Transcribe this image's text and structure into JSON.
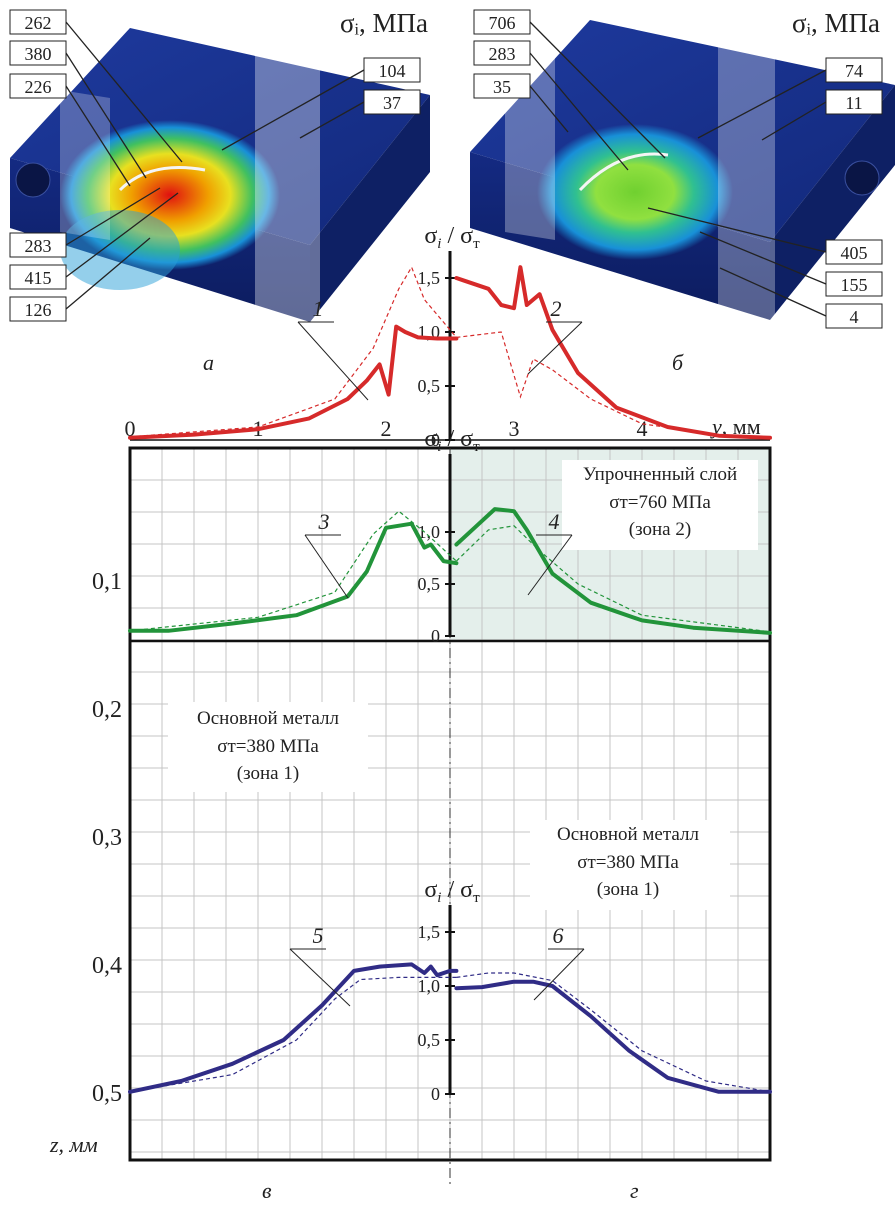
{
  "colors": {
    "red": "#d62a2a",
    "green": "#22943a",
    "blue": "#302c86",
    "grid": "#c4c4c4",
    "shade": "#e4efeb"
  },
  "model_a": {
    "unit_label": "σᵢ, МПа",
    "caption": "а",
    "callouts": [
      "262",
      "380",
      "226",
      "104",
      "37",
      "283",
      "415",
      "126"
    ]
  },
  "model_b": {
    "unit_label": "σᵢ, МПа",
    "caption": "б",
    "callouts": [
      "706",
      "283",
      "35",
      "74",
      "11",
      "405",
      "155",
      "4"
    ]
  },
  "chart_data": [
    {
      "type": "line",
      "title": "",
      "ylabel": "σᵢ / σт",
      "xlabel": "y, мм",
      "xlim": [
        0,
        5
      ],
      "ylim": [
        0,
        1.8
      ],
      "x_ticks": [
        "0",
        "1",
        "2",
        "3",
        "4"
      ],
      "y_ticks": [
        "0",
        "0,5",
        "1,0",
        "1,5"
      ],
      "series": [
        {
          "name": "1",
          "x": [
            0,
            0.5,
            1,
            1.4,
            1.7,
            1.85,
            1.95,
            2.02,
            2.08,
            2.15,
            2.25,
            2.4,
            2.55
          ],
          "y": [
            0.02,
            0.05,
            0.1,
            0.2,
            0.38,
            0.55,
            0.7,
            0.42,
            1.05,
            1.0,
            0.95,
            0.94,
            0.94
          ]
        },
        {
          "name": "2",
          "x": [
            2.55,
            2.6,
            2.8,
            2.9,
            3.0,
            3.05,
            3.1,
            3.2,
            3.3,
            3.5,
            3.8,
            4.2,
            4.6,
            5.0
          ],
          "y": [
            1.5,
            1.48,
            1.4,
            1.25,
            1.22,
            1.6,
            1.25,
            1.35,
            1.02,
            0.62,
            0.3,
            0.12,
            0.04,
            0.02
          ]
        }
      ],
      "reference_series": [
        {
          "x": [
            0,
            1,
            1.6,
            1.9,
            2.1,
            2.2,
            2.3,
            2.55
          ],
          "y": [
            0.03,
            0.12,
            0.38,
            0.85,
            1.4,
            1.6,
            1.3,
            0.95
          ]
        },
        {
          "x": [
            2.55,
            2.9,
            3.05,
            3.15,
            3.3,
            3.6,
            4.0,
            4.6,
            5.0
          ],
          "y": [
            0.95,
            1.0,
            0.4,
            0.75,
            0.65,
            0.38,
            0.15,
            0.05,
            0.02
          ]
        }
      ],
      "curve_labels": [
        "1",
        "2"
      ]
    },
    {
      "type": "line",
      "title": "",
      "ylabel": "σᵢ / σт",
      "xlim": [
        0,
        5
      ],
      "ylim": [
        0,
        1.8
      ],
      "y_ticks": [
        "0",
        "0,5",
        "1,0"
      ],
      "zone_text": [
        "Упрочненный слой",
        "σт=760 МПа",
        "(зона 2)"
      ],
      "series": [
        {
          "name": "3",
          "x": [
            0,
            0.3,
            0.8,
            1.3,
            1.7,
            1.85,
            2.0,
            2.2,
            2.3,
            2.35,
            2.45,
            2.55
          ],
          "y": [
            0.05,
            0.05,
            0.12,
            0.2,
            0.38,
            0.62,
            1.04,
            1.08,
            0.85,
            0.88,
            0.72,
            0.7
          ]
        },
        {
          "name": "4",
          "x": [
            2.55,
            2.7,
            2.85,
            3.0,
            3.1,
            3.3,
            3.6,
            4.0,
            4.4,
            5.0
          ],
          "y": [
            0.88,
            1.05,
            1.22,
            1.2,
            1.02,
            0.6,
            0.32,
            0.15,
            0.08,
            0.03
          ]
        }
      ],
      "reference_series": [
        {
          "x": [
            0,
            1,
            1.6,
            1.9,
            2.1,
            2.3,
            2.55
          ],
          "y": [
            0.05,
            0.18,
            0.42,
            0.98,
            1.2,
            1.0,
            0.72
          ]
        },
        {
          "x": [
            2.55,
            2.8,
            3.0,
            3.2,
            3.5,
            4.0,
            5.0
          ],
          "y": [
            0.72,
            1.02,
            1.06,
            0.82,
            0.5,
            0.2,
            0.04
          ]
        }
      ],
      "curve_labels": [
        "3",
        "4"
      ]
    },
    {
      "type": "line",
      "title": "",
      "ylabel": "σᵢ / σт",
      "xlim": [
        0,
        5
      ],
      "ylim": [
        0,
        1.8
      ],
      "y_ticks": [
        "0",
        "0,5",
        "1,0",
        "1,5"
      ],
      "series": [
        {
          "name": "5",
          "x": [
            0,
            0.4,
            0.8,
            1.2,
            1.5,
            1.75,
            1.95,
            2.2,
            2.3,
            2.35,
            2.4,
            2.5,
            2.55
          ],
          "y": [
            0.02,
            0.12,
            0.28,
            0.5,
            0.82,
            1.14,
            1.18,
            1.2,
            1.12,
            1.18,
            1.1,
            1.14,
            1.14
          ]
        },
        {
          "name": "6",
          "x": [
            2.55,
            2.75,
            3.0,
            3.15,
            3.3,
            3.6,
            3.9,
            4.2,
            4.6,
            5.0
          ],
          "y": [
            0.98,
            0.99,
            1.04,
            1.04,
            1.0,
            0.72,
            0.4,
            0.15,
            0.02,
            0.02
          ]
        }
      ],
      "reference_series": [
        {
          "x": [
            0,
            0.8,
            1.3,
            1.6,
            1.8,
            2.1,
            2.55
          ],
          "y": [
            0.02,
            0.18,
            0.5,
            0.88,
            1.06,
            1.08,
            1.08
          ]
        },
        {
          "x": [
            2.55,
            2.8,
            3.0,
            3.3,
            3.6,
            4.0,
            4.5,
            5.0
          ],
          "y": [
            1.08,
            1.12,
            1.12,
            1.05,
            0.78,
            0.4,
            0.12,
            0.02
          ]
        }
      ],
      "curve_labels": [
        "5",
        "6"
      ]
    }
  ],
  "depth_axis": {
    "label": "z, мм",
    "ticks": [
      "0,1",
      "0,2",
      "0,3",
      "0,4",
      "0,5"
    ]
  },
  "zone_labels": {
    "left": [
      "Основной металл",
      "σт=380 МПа",
      "(зона 1)"
    ],
    "right": [
      "Основной металл",
      "σт=380 МПа",
      "(зона 1)"
    ]
  },
  "captions": {
    "left": "в",
    "right": "г"
  }
}
